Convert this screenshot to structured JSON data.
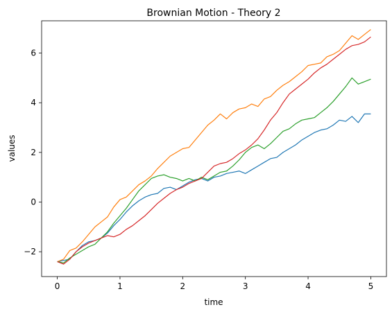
{
  "chart_data": {
    "type": "line",
    "title": "Brownian Motion - Theory 2",
    "xlabel": "time",
    "ylabel": "values",
    "xlim": [
      -0.25,
      5.25
    ],
    "ylim": [
      -3.0,
      7.3
    ],
    "xticks": [
      0,
      1,
      2,
      3,
      4,
      5
    ],
    "yticks": [
      -2,
      0,
      2,
      4,
      6
    ],
    "grid": false,
    "legend": "none",
    "series": [
      {
        "color": "#1f77b4",
        "x": [
          0,
          0.1,
          0.2,
          0.3,
          0.4,
          0.5,
          0.6,
          0.7,
          0.8,
          0.9,
          1.0,
          1.1,
          1.2,
          1.3,
          1.4,
          1.5,
          1.6,
          1.7,
          1.8,
          1.9,
          2.0,
          2.1,
          2.2,
          2.3,
          2.4,
          2.5,
          2.6,
          2.7,
          2.8,
          2.9,
          3.0,
          3.1,
          3.2,
          3.3,
          3.4,
          3.5,
          3.6,
          3.7,
          3.8,
          3.9,
          4.0,
          4.1,
          4.2,
          4.3,
          4.4,
          4.5,
          4.6,
          4.7,
          4.8,
          4.9,
          5.0
        ],
        "y": [
          -2.4,
          -2.35,
          -2.3,
          -2.0,
          -1.75,
          -1.6,
          -1.55,
          -1.45,
          -1.25,
          -0.95,
          -0.7,
          -0.4,
          -0.15,
          0.05,
          0.2,
          0.3,
          0.35,
          0.55,
          0.6,
          0.5,
          0.65,
          0.8,
          0.9,
          0.95,
          0.85,
          1.0,
          1.05,
          1.15,
          1.2,
          1.25,
          1.15,
          1.3,
          1.45,
          1.6,
          1.75,
          1.8,
          2.0,
          2.15,
          2.3,
          2.5,
          2.65,
          2.8,
          2.9,
          2.95,
          3.1,
          3.3,
          3.25,
          3.45,
          3.2,
          3.55,
          3.55
        ]
      },
      {
        "color": "#ff7f0e",
        "x": [
          0,
          0.1,
          0.2,
          0.3,
          0.4,
          0.5,
          0.6,
          0.7,
          0.8,
          0.9,
          1.0,
          1.1,
          1.2,
          1.3,
          1.4,
          1.5,
          1.6,
          1.7,
          1.8,
          1.9,
          2.0,
          2.1,
          2.2,
          2.3,
          2.4,
          2.5,
          2.6,
          2.7,
          2.8,
          2.9,
          3.0,
          3.1,
          3.2,
          3.3,
          3.4,
          3.5,
          3.6,
          3.7,
          3.8,
          3.9,
          4.0,
          4.1,
          4.2,
          4.3,
          4.4,
          4.5,
          4.6,
          4.7,
          4.8,
          4.9,
          5.0
        ],
        "y": [
          -2.4,
          -2.3,
          -1.95,
          -1.85,
          -1.6,
          -1.3,
          -1.0,
          -0.8,
          -0.6,
          -0.2,
          0.1,
          0.2,
          0.45,
          0.7,
          0.85,
          1.05,
          1.35,
          1.6,
          1.85,
          2.0,
          2.15,
          2.2,
          2.5,
          2.8,
          3.1,
          3.3,
          3.55,
          3.35,
          3.6,
          3.75,
          3.8,
          3.95,
          3.85,
          4.15,
          4.25,
          4.5,
          4.7,
          4.85,
          5.05,
          5.25,
          5.5,
          5.55,
          5.6,
          5.85,
          5.95,
          6.1,
          6.4,
          6.7,
          6.55,
          6.75,
          6.95
        ]
      },
      {
        "color": "#2ca02c",
        "x": [
          0,
          0.1,
          0.2,
          0.3,
          0.4,
          0.5,
          0.6,
          0.7,
          0.8,
          0.9,
          1.0,
          1.1,
          1.2,
          1.3,
          1.4,
          1.5,
          1.6,
          1.7,
          1.8,
          1.9,
          2.0,
          2.1,
          2.2,
          2.3,
          2.4,
          2.5,
          2.6,
          2.7,
          2.8,
          2.9,
          3.0,
          3.1,
          3.2,
          3.3,
          3.4,
          3.5,
          3.6,
          3.7,
          3.8,
          3.9,
          4.0,
          4.1,
          4.2,
          4.3,
          4.4,
          4.5,
          4.6,
          4.7,
          4.8,
          4.9,
          5.0
        ],
        "y": [
          -2.4,
          -2.45,
          -2.25,
          -2.1,
          -1.95,
          -1.8,
          -1.7,
          -1.45,
          -1.2,
          -0.85,
          -0.55,
          -0.25,
          0.1,
          0.45,
          0.7,
          0.95,
          1.05,
          1.1,
          1.0,
          0.95,
          0.85,
          0.95,
          0.85,
          1.0,
          0.9,
          1.05,
          1.2,
          1.25,
          1.45,
          1.7,
          2.0,
          2.2,
          2.3,
          2.15,
          2.35,
          2.6,
          2.85,
          2.95,
          3.15,
          3.3,
          3.35,
          3.4,
          3.6,
          3.8,
          4.05,
          4.35,
          4.65,
          5.0,
          4.75,
          4.85,
          4.95
        ]
      },
      {
        "color": "#d62728",
        "x": [
          0,
          0.1,
          0.2,
          0.3,
          0.4,
          0.5,
          0.6,
          0.7,
          0.8,
          0.9,
          1.0,
          1.1,
          1.2,
          1.3,
          1.4,
          1.5,
          1.6,
          1.7,
          1.8,
          1.9,
          2.0,
          2.1,
          2.2,
          2.3,
          2.4,
          2.5,
          2.6,
          2.7,
          2.8,
          2.9,
          3.0,
          3.1,
          3.2,
          3.3,
          3.4,
          3.5,
          3.6,
          3.7,
          3.8,
          3.9,
          4.0,
          4.1,
          4.2,
          4.3,
          4.4,
          4.5,
          4.6,
          4.7,
          4.8,
          4.9,
          5.0
        ],
        "y": [
          -2.4,
          -2.5,
          -2.3,
          -2.0,
          -1.8,
          -1.65,
          -1.55,
          -1.45,
          -1.35,
          -1.4,
          -1.3,
          -1.1,
          -0.95,
          -0.75,
          -0.55,
          -0.3,
          -0.05,
          0.15,
          0.35,
          0.5,
          0.6,
          0.75,
          0.85,
          0.95,
          1.2,
          1.45,
          1.55,
          1.6,
          1.75,
          1.95,
          2.1,
          2.3,
          2.55,
          2.9,
          3.3,
          3.6,
          4.0,
          4.35,
          4.55,
          4.75,
          4.95,
          5.2,
          5.4,
          5.55,
          5.75,
          5.95,
          6.15,
          6.3,
          6.35,
          6.45,
          6.65
        ]
      }
    ]
  }
}
